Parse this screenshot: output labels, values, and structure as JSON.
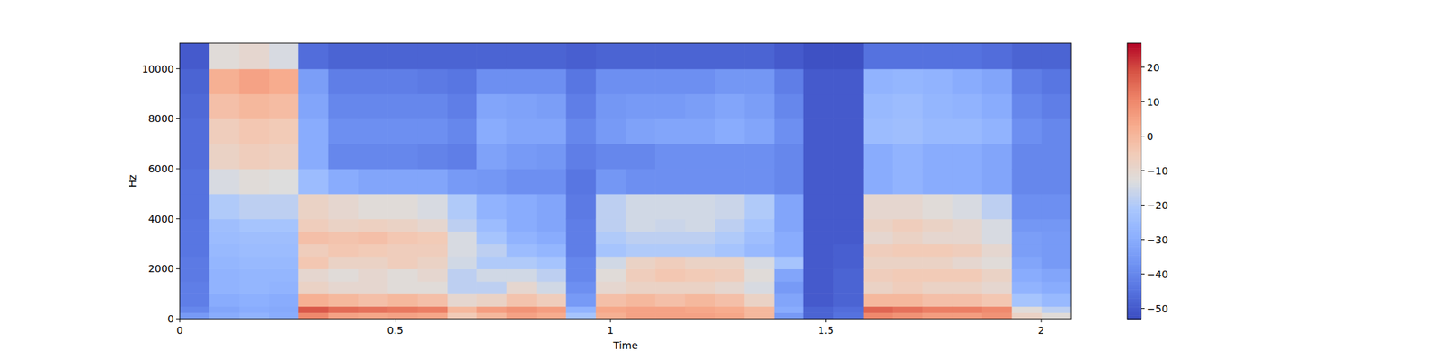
{
  "chart_data": {
    "type": "heatmap",
    "x_label": "Time",
    "y_label": "Hz",
    "xlim": [
      0,
      2.07
    ],
    "xticks": [
      0,
      0.5,
      1,
      1.5,
      2
    ],
    "ylim": [
      0,
      11025
    ],
    "yticks": [
      0,
      2000,
      4000,
      6000,
      8000,
      10000
    ],
    "x": [
      0,
      0.069,
      0.138,
      0.207,
      0.276,
      0.345,
      0.414,
      0.483,
      0.552,
      0.621,
      0.69,
      0.759,
      0.828,
      0.897,
      0.966,
      1.035,
      1.104,
      1.173,
      1.242,
      1.311,
      1.38,
      1.449,
      1.518,
      1.587,
      1.656,
      1.725,
      1.794,
      1.863,
      1.932,
      2.001,
      2.07
    ],
    "y": [
      0,
      250,
      500,
      1000,
      1500,
      2000,
      2500,
      3000,
      3500,
      4000,
      5000,
      6000,
      7000,
      8000,
      9000,
      10000,
      11025
    ],
    "z": [
      [
        -35,
        -40,
        -42,
        -42,
        -43,
        -43,
        -44,
        -44,
        -44,
        -45,
        -45,
        -46,
        -46,
        -47,
        -48,
        -50
      ],
      [
        -30,
        -32,
        -30,
        -28,
        -28,
        -27,
        -26,
        -25,
        -24,
        -20,
        -14,
        -8,
        -6,
        -2,
        2,
        -12
      ],
      [
        -28,
        -30,
        -29,
        -27,
        -27,
        -26,
        -25,
        -24,
        -22,
        -18,
        -12,
        -6,
        -4,
        0,
        5,
        -10
      ],
      [
        -30,
        -31,
        -30,
        -28,
        -27,
        -26,
        -25,
        -24,
        -22,
        -18,
        -13,
        -7,
        -5,
        -1,
        3,
        -14
      ],
      [
        10,
        18,
        2,
        -8,
        -10,
        -4,
        -6,
        -2,
        -6,
        -8,
        -25,
        -30,
        -30,
        -32,
        -34,
        -46
      ],
      [
        5,
        15,
        0,
        -10,
        -12,
        -8,
        -4,
        -3,
        -8,
        -10,
        -30,
        -40,
        -38,
        -40,
        -42,
        -48
      ],
      [
        4,
        14,
        -2,
        -10,
        -10,
        -8,
        -5,
        -2,
        -7,
        -12,
        -32,
        -40,
        -38,
        -40,
        -42,
        -48
      ],
      [
        5,
        13,
        0,
        -12,
        -12,
        -6,
        -6,
        -4,
        -8,
        -12,
        -32,
        -40,
        -38,
        -40,
        -42,
        -48
      ],
      [
        4,
        12,
        -2,
        -12,
        -10,
        -8,
        -6,
        -5,
        -10,
        -14,
        -32,
        -41,
        -38,
        -40,
        -43,
        -48
      ],
      [
        -5,
        0,
        -10,
        -18,
        -18,
        -15,
        -14,
        -14,
        -18,
        -20,
        -35,
        -42,
        -40,
        -42,
        -44,
        -48
      ],
      [
        0,
        6,
        -8,
        -18,
        -15,
        -20,
        -18,
        -22,
        -25,
        -28,
        -36,
        -33,
        -30,
        -32,
        -38,
        -48
      ],
      [
        5,
        8,
        -3,
        -10,
        -15,
        -20,
        -25,
        -28,
        -30,
        -30,
        -38,
        -35,
        -32,
        -33,
        -38,
        -48
      ],
      [
        3,
        6,
        -6,
        -15,
        -18,
        -22,
        -27,
        -30,
        -32,
        -32,
        -38,
        -36,
        -32,
        -34,
        -38,
        -48
      ],
      [
        -22,
        -28,
        -35,
        -38,
        -40,
        -40,
        -42,
        -42,
        -42,
        -43,
        -44,
        -42,
        -40,
        -42,
        -44,
        -49
      ],
      [
        2,
        4,
        -2,
        -10,
        -12,
        -15,
        -22,
        -20,
        -18,
        -18,
        -36,
        -40,
        -35,
        -36,
        -38,
        -48
      ],
      [
        5,
        5,
        0,
        -8,
        -6,
        -8,
        -20,
        -18,
        -15,
        -15,
        -38,
        -40,
        -33,
        -35,
        -38,
        -48
      ],
      [
        5,
        5,
        -2,
        -8,
        -4,
        -6,
        -20,
        -18,
        -16,
        -15,
        -38,
        -38,
        -32,
        -35,
        -38,
        -48
      ],
      [
        5,
        4,
        0,
        -8,
        -5,
        -8,
        -20,
        -18,
        -15,
        -15,
        -38,
        -38,
        -32,
        -34,
        -38,
        -48
      ],
      [
        4,
        3,
        -2,
        -10,
        -6,
        -8,
        -22,
        -20,
        -18,
        -16,
        -38,
        -38,
        -30,
        -32,
        -36,
        -48
      ],
      [
        0,
        0,
        -8,
        -14,
        -12,
        -14,
        -26,
        -24,
        -22,
        -20,
        -38,
        -38,
        -32,
        -34,
        -36,
        -48
      ],
      [
        -35,
        -30,
        -32,
        -35,
        -32,
        -22,
        -30,
        -30,
        -32,
        -32,
        -40,
        -40,
        -38,
        -40,
        -42,
        -50
      ],
      [
        -48,
        -48,
        -50,
        -50,
        -50,
        -50,
        -50,
        -50,
        -50,
        -50,
        -50,
        -50,
        -50,
        -50,
        -50,
        -52
      ],
      [
        -45,
        -46,
        -48,
        -48,
        -48,
        -49,
        -49,
        -50,
        -50,
        -50,
        -50,
        -50,
        -50,
        -50,
        -50,
        -52
      ],
      [
        10,
        16,
        0,
        -8,
        -6,
        -8,
        -6,
        -10,
        -8,
        -10,
        -30,
        -30,
        -25,
        -26,
        -28,
        -45
      ],
      [
        8,
        14,
        0,
        -6,
        -5,
        -8,
        -5,
        -8,
        -6,
        -10,
        -28,
        -28,
        -24,
        -25,
        -27,
        -45
      ],
      [
        6,
        12,
        -2,
        -8,
        -5,
        -8,
        -5,
        -10,
        -8,
        -12,
        -30,
        -30,
        -26,
        -27,
        -28,
        -45
      ],
      [
        6,
        12,
        -2,
        -8,
        -5,
        -10,
        -6,
        -10,
        -10,
        -14,
        -30,
        -30,
        -26,
        -28,
        -30,
        -45
      ],
      [
        8,
        10,
        -4,
        -10,
        -8,
        -12,
        -10,
        -14,
        -14,
        -18,
        -32,
        -32,
        -28,
        -30,
        -32,
        -46
      ],
      [
        -8,
        -12,
        -22,
        -28,
        -30,
        -32,
        -34,
        -34,
        -36,
        -38,
        -40,
        -40,
        -38,
        -40,
        -42,
        -48
      ],
      [
        -12,
        -18,
        -26,
        -30,
        -32,
        -35,
        -35,
        -35,
        -36,
        -38,
        -40,
        -40,
        -40,
        -42,
        -44,
        -48
      ]
    ],
    "colorbar": {
      "range": [
        -53,
        27
      ],
      "ticks": [
        {
          "value": -50,
          "label": "−50"
        },
        {
          "value": -40,
          "label": "−40"
        },
        {
          "value": -30,
          "label": "−30"
        },
        {
          "value": -20,
          "label": "−20"
        },
        {
          "value": -10,
          "label": "−10"
        },
        0,
        10,
        20
      ]
    }
  }
}
